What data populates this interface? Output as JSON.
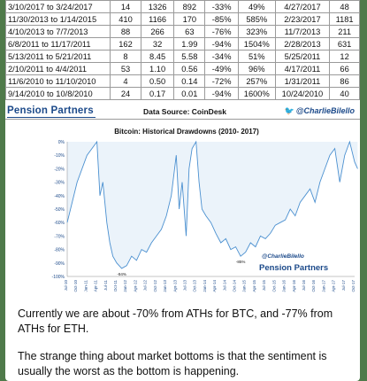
{
  "table": {
    "rows": [
      [
        "3/10/2017 to 3/24/2017",
        "14",
        "1326",
        "892",
        "-33%",
        "49%",
        "4/27/2017",
        "48"
      ],
      [
        "11/30/2013 to 1/14/2015",
        "410",
        "1166",
        "170",
        "-85%",
        "585%",
        "2/23/2017",
        "1181"
      ],
      [
        "4/10/2013 to 7/7/2013",
        "88",
        "266",
        "63",
        "-76%",
        "323%",
        "11/7/2013",
        "211"
      ],
      [
        "6/8/2011 to 11/17/2011",
        "162",
        "32",
        "1.99",
        "-94%",
        "1504%",
        "2/28/2013",
        "631"
      ],
      [
        "5/13/2011 to 5/21/2011",
        "8",
        "8.45",
        "5.58",
        "-34%",
        "51%",
        "5/25/2011",
        "12"
      ],
      [
        "2/10/2011 to 4/4/2011",
        "53",
        "1.10",
        "0.56",
        "-49%",
        "96%",
        "4/17/2011",
        "66"
      ],
      [
        "11/6/2010 to 11/10/2010",
        "4",
        "0.50",
        "0.14",
        "-72%",
        "257%",
        "1/31/2011",
        "86"
      ],
      [
        "9/14/2010 to 10/8/2010",
        "24",
        "0.17",
        "0.01",
        "-94%",
        "1600%",
        "10/24/2010",
        "40"
      ]
    ],
    "brand": "Pension Partners",
    "source": "Data Source: CoinDesk",
    "twitter": "@CharlieBilello"
  },
  "chart_data": {
    "type": "line",
    "title": "Bitcoin: Historical Drawdowns (2010- 2017)",
    "ylim": [
      -100,
      0
    ],
    "yticks": [
      "0%",
      "-10%",
      "-20%",
      "-30%",
      "-40%",
      "-50%",
      "-60%",
      "-70%",
      "-80%",
      "-90%",
      "-100%"
    ],
    "xticks": [
      "Jul-10",
      "Oct-10",
      "Jan-11",
      "Apr-11",
      "Jul-11",
      "Oct-11",
      "Jan-12",
      "Apr-12",
      "Jul-12",
      "Oct-12",
      "Jan-13",
      "Apr-13",
      "Jul-13",
      "Oct-13",
      "Jan-14",
      "Apr-14",
      "Jul-14",
      "Oct-14",
      "Jan-15",
      "Apr-15",
      "Jul-15",
      "Oct-15",
      "Jan-16",
      "Apr-16",
      "Jul-16",
      "Oct-16",
      "Jan-17",
      "Apr-17",
      "Jul-17",
      "Oct-17"
    ],
    "series": [
      {
        "x": [
          0,
          1,
          2,
          2.5,
          3,
          3.3,
          3.6,
          4,
          4.3,
          4.6,
          5,
          5.5,
          6,
          6.5,
          7,
          7.5,
          8,
          8.5,
          9,
          9.5,
          10,
          10.5,
          11,
          11.3,
          11.6,
          12,
          12.3,
          12.6,
          13,
          13.3,
          13.6,
          14,
          14.5,
          15,
          15.5,
          16,
          16.5,
          17,
          17.5,
          18,
          18.5,
          19,
          19.5,
          20,
          20.5,
          21,
          21.5,
          22,
          22.5,
          23,
          23.5,
          24,
          24.5,
          25,
          25.5,
          26,
          26.5,
          27,
          27.5,
          28,
          28.5,
          29,
          29.3
        ],
        "values": [
          -60,
          -30,
          -10,
          -5,
          0,
          -40,
          -30,
          -60,
          -75,
          -85,
          -90,
          -94,
          -92,
          -85,
          -88,
          -80,
          -82,
          -75,
          -70,
          -65,
          -55,
          -40,
          -10,
          -50,
          -30,
          -70,
          -20,
          -5,
          0,
          -30,
          -50,
          -55,
          -60,
          -68,
          -75,
          -72,
          -80,
          -78,
          -85,
          -82,
          -75,
          -78,
          -70,
          -72,
          -68,
          -62,
          -60,
          -58,
          -50,
          -55,
          -45,
          -40,
          -35,
          -45,
          -30,
          -20,
          -10,
          -5,
          -30,
          -10,
          0,
          -15,
          -20
        ]
      }
    ],
    "annotations": [
      "-94%",
      "-85%"
    ],
    "watermark_handle": "@CharlieBilello",
    "watermark_brand": "Pension Partners"
  },
  "message": {
    "p1": "Currently we are about -70% from ATHs for BTC, and -77% from ATHs for ETH.",
    "p2": "The strange thing about market bottoms is that the sentiment is usually the worst as the bottom is happening."
  }
}
